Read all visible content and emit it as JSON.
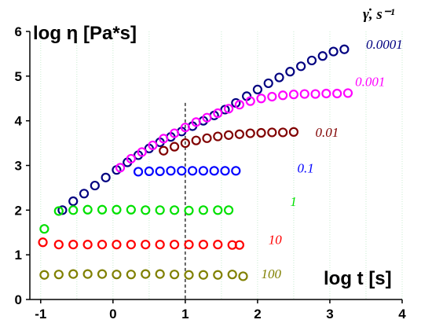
{
  "chart_data": {
    "type": "scatter",
    "title": "",
    "xlabel": "log t [s]",
    "ylabel": "log η [Pa*s]",
    "legend_title": "γ̇, s⁻¹",
    "xlim": [
      -1.15,
      4
    ],
    "ylim": [
      0,
      6
    ],
    "xticks": [
      "-1",
      "0",
      "1",
      "2",
      "3",
      "4"
    ],
    "yticks": [
      "0",
      "1",
      "2",
      "3",
      "4",
      "5",
      "6"
    ],
    "grid": "vertical dotted green at 0.5 intervals",
    "reference_line_x": 1,
    "series": [
      {
        "name": "0.0001",
        "color": "#000080",
        "x": [
          -0.7,
          -0.55,
          -0.4,
          -0.25,
          -0.1,
          0.05,
          0.2,
          0.35,
          0.5,
          0.65,
          0.8,
          0.95,
          1.1,
          1.25,
          1.4,
          1.55,
          1.7,
          1.85,
          2.0,
          2.15,
          2.3,
          2.45,
          2.6,
          2.75,
          2.9,
          3.05,
          3.2
        ],
        "y": [
          2.0,
          2.2,
          2.37,
          2.55,
          2.73,
          2.9,
          3.07,
          3.23,
          3.38,
          3.52,
          3.64,
          3.76,
          3.88,
          4.0,
          4.12,
          4.25,
          4.4,
          4.55,
          4.7,
          4.84,
          4.97,
          5.1,
          5.22,
          5.35,
          5.45,
          5.55,
          5.6
        ]
      },
      {
        "name": "0.001",
        "color": "#ff00ff",
        "x": [
          0.1,
          0.25,
          0.4,
          0.55,
          0.7,
          0.85,
          1.0,
          1.15,
          1.3,
          1.45,
          1.6,
          1.75,
          1.9,
          2.05,
          2.2,
          2.35,
          2.5,
          2.65,
          2.8,
          2.95,
          3.1,
          3.25
        ],
        "y": [
          2.95,
          3.15,
          3.3,
          3.45,
          3.6,
          3.72,
          3.85,
          3.97,
          4.07,
          4.17,
          4.27,
          4.36,
          4.44,
          4.5,
          4.54,
          4.57,
          4.59,
          4.6,
          4.6,
          4.61,
          4.61,
          4.62
        ]
      },
      {
        "name": "0.01",
        "color": "#800000",
        "x": [
          0.7,
          0.85,
          1.0,
          1.15,
          1.3,
          1.45,
          1.6,
          1.75,
          1.9,
          2.05,
          2.2,
          2.35,
          2.5
        ],
        "y": [
          3.33,
          3.42,
          3.5,
          3.56,
          3.61,
          3.65,
          3.68,
          3.7,
          3.72,
          3.73,
          3.74,
          3.74,
          3.75
        ]
      },
      {
        "name": "0.1",
        "color": "#0000ff",
        "x": [
          0.35,
          0.5,
          0.65,
          0.8,
          0.95,
          1.1,
          1.25,
          1.4,
          1.55,
          1.7
        ],
        "y": [
          2.86,
          2.87,
          2.87,
          2.88,
          2.88,
          2.88,
          2.88,
          2.88,
          2.88,
          2.88
        ]
      },
      {
        "name": "1",
        "color": "#00e000",
        "x": [
          -0.95,
          -0.75,
          -0.55,
          -0.35,
          -0.15,
          0.05,
          0.25,
          0.45,
          0.65,
          0.85,
          1.05,
          1.25,
          1.45,
          1.6
        ],
        "y": [
          1.58,
          1.98,
          2.0,
          2.01,
          2.01,
          2.01,
          2.01,
          2.0,
          2.0,
          2.0,
          1.99,
          2.0,
          2.0,
          2.0
        ]
      },
      {
        "name": "10",
        "color": "#ff0000",
        "x": [
          -0.97,
          -0.75,
          -0.55,
          -0.35,
          -0.15,
          0.05,
          0.25,
          0.45,
          0.65,
          0.85,
          1.05,
          1.25,
          1.45,
          1.65,
          1.75
        ],
        "y": [
          1.28,
          1.23,
          1.23,
          1.23,
          1.23,
          1.23,
          1.23,
          1.23,
          1.23,
          1.23,
          1.23,
          1.23,
          1.23,
          1.22,
          1.22
        ]
      },
      {
        "name": "100",
        "color": "#808000",
        "x": [
          -0.95,
          -0.75,
          -0.55,
          -0.35,
          -0.15,
          0.05,
          0.25,
          0.45,
          0.65,
          0.85,
          1.05,
          1.25,
          1.45,
          1.65,
          1.8
        ],
        "y": [
          0.55,
          0.56,
          0.57,
          0.57,
          0.57,
          0.56,
          0.56,
          0.57,
          0.57,
          0.56,
          0.55,
          0.55,
          0.55,
          0.56,
          0.52
        ]
      }
    ]
  }
}
